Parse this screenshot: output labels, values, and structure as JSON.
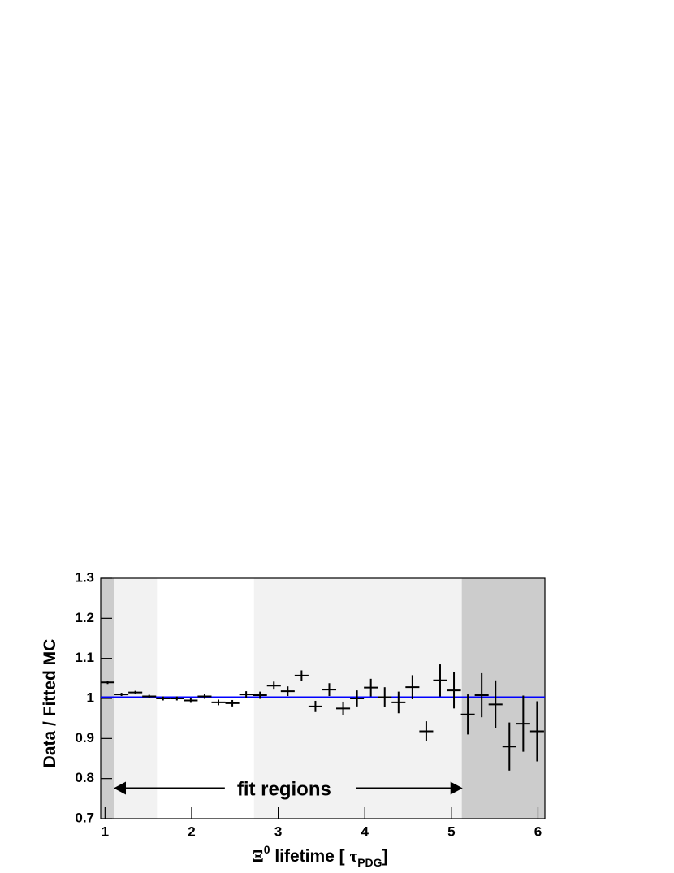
{
  "chart_data": {
    "type": "errorbar",
    "ylabel": "Data / Fitted MC",
    "xlabel_parts": [
      "Ξ",
      "0",
      " lifetime  [ ",
      "τ",
      "PDG",
      "]"
    ],
    "annotation": "fit regions",
    "annotation_arrow": {
      "from": 1.1,
      "to": 5.13,
      "y": 0.776
    },
    "xlim": [
      0.95,
      6.08
    ],
    "ylim": [
      0.7,
      1.3
    ],
    "xticks": [
      1,
      2,
      3,
      4,
      5,
      6
    ],
    "yticks": [
      0.7,
      0.8,
      0.9,
      1,
      1.1,
      1.2,
      1.3
    ],
    "regions": [
      {
        "from": 0.95,
        "to": 1.11,
        "color": "#cccccc"
      },
      {
        "from": 1.11,
        "to": 1.6,
        "color": "#f2f2f2"
      },
      {
        "from": 2.72,
        "to": 5.12,
        "color": "#f2f2f2"
      },
      {
        "from": 5.12,
        "to": 6.08,
        "color": "#cccccc"
      }
    ],
    "fit_line": {
      "value": 1.003,
      "color": "#0000ff"
    },
    "color": "#000000",
    "x_error": 0.08,
    "x": [
      1.03,
      1.19,
      1.35,
      1.51,
      1.67,
      1.83,
      1.99,
      2.15,
      2.31,
      2.47,
      2.63,
      2.79,
      2.95,
      3.11,
      3.27,
      3.43,
      3.59,
      3.75,
      3.91,
      4.07,
      4.23,
      4.39,
      4.55,
      4.71,
      4.87,
      5.03,
      5.19,
      5.35,
      5.51,
      5.67,
      5.83,
      5.99
    ],
    "values": [
      1.04,
      1.01,
      1.015,
      1.005,
      1.0,
      1.0,
      0.995,
      1.005,
      0.99,
      0.988,
      1.01,
      1.008,
      1.032,
      1.018,
      1.057,
      0.98,
      1.022,
      0.975,
      1.0,
      1.027,
      1.003,
      0.99,
      1.028,
      0.918,
      1.045,
      1.02,
      0.96,
      1.008,
      0.985,
      0.88,
      0.937,
      0.918
    ],
    "yerr": [
      0.004,
      0.004,
      0.004,
      0.004,
      0.005,
      0.005,
      0.006,
      0.006,
      0.007,
      0.008,
      0.008,
      0.009,
      0.01,
      0.012,
      0.013,
      0.014,
      0.016,
      0.017,
      0.02,
      0.022,
      0.025,
      0.027,
      0.03,
      0.025,
      0.04,
      0.045,
      0.05,
      0.055,
      0.06,
      0.06,
      0.07,
      0.075
    ]
  }
}
